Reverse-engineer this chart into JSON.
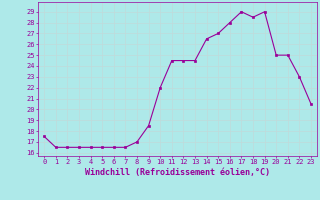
{
  "x": [
    0,
    1,
    2,
    3,
    4,
    5,
    6,
    7,
    8,
    9,
    10,
    11,
    12,
    13,
    14,
    15,
    16,
    17,
    18,
    19,
    20,
    21,
    22,
    23
  ],
  "y": [
    17.5,
    16.5,
    16.5,
    16.5,
    16.5,
    16.5,
    16.5,
    16.5,
    17.0,
    18.5,
    22.0,
    24.5,
    24.5,
    24.5,
    26.5,
    27.0,
    28.0,
    29.0,
    28.5,
    29.0,
    25.0,
    25.0,
    23.0,
    20.5
  ],
  "line_color": "#990099",
  "marker_color": "#990099",
  "bg_color": "#aee9e9",
  "grid_color": "#c0dada",
  "xlabel": "Windchill (Refroidissement éolien,°C)",
  "ylabel_ticks": [
    16,
    17,
    18,
    19,
    20,
    21,
    22,
    23,
    24,
    25,
    26,
    27,
    28,
    29
  ],
  "xlabel_ticks": [
    0,
    1,
    2,
    3,
    4,
    5,
    6,
    7,
    8,
    9,
    10,
    11,
    12,
    13,
    14,
    15,
    16,
    17,
    18,
    19,
    20,
    21,
    22,
    23
  ],
  "ylim": [
    15.7,
    29.9
  ],
  "xlim": [
    -0.5,
    23.5
  ],
  "tick_color": "#990099",
  "label_color": "#990099",
  "tick_fontsize": 5.0,
  "xlabel_fontsize": 6.0,
  "linewidth": 0.8,
  "markersize": 2.0
}
